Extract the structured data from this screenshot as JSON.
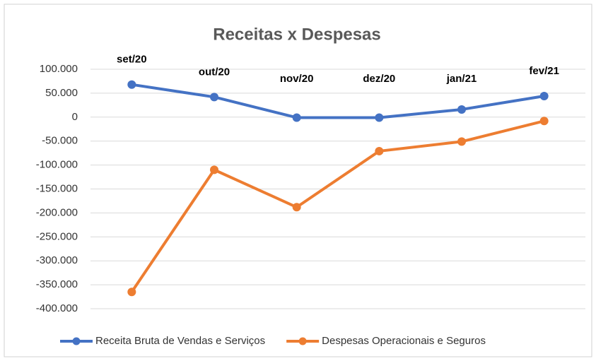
{
  "chart_data": {
    "type": "line",
    "title": "Receitas x Despesas",
    "categories": [
      "set/20",
      "out/20",
      "nov/20",
      "dez/20",
      "jan/21",
      "fev/21"
    ],
    "series": [
      {
        "name": "Receita Bruta de Vendas e Serviços",
        "color": "#4472c4",
        "values": [
          68000,
          42000,
          -1000,
          -1000,
          16000,
          44000
        ]
      },
      {
        "name": "Despesas Operacionais e Seguros",
        "color": "#ed7d31",
        "values": [
          -365000,
          -110000,
          -188000,
          -71000,
          -51000,
          -8000
        ]
      }
    ],
    "ylim": [
      -400000,
      100000
    ],
    "yticks": [
      {
        "value": 100000,
        "label": "100.000"
      },
      {
        "value": 50000,
        "label": "50.000"
      },
      0,
      {
        "value": -50000,
        "label": "-50.000"
      },
      {
        "value": -100000,
        "label": "-100.000"
      },
      {
        "value": -150000,
        "label": "-150.000"
      },
      {
        "value": -200000,
        "label": "-200.000"
      },
      {
        "value": -250000,
        "label": "-250.000"
      },
      {
        "value": -300000,
        "label": "-300.000"
      },
      {
        "value": -350000,
        "label": "-350.000"
      },
      {
        "value": -400000,
        "label": "-400.000"
      }
    ],
    "negative_tick_color": "#c00000",
    "grid": true,
    "legend": "bottom"
  }
}
